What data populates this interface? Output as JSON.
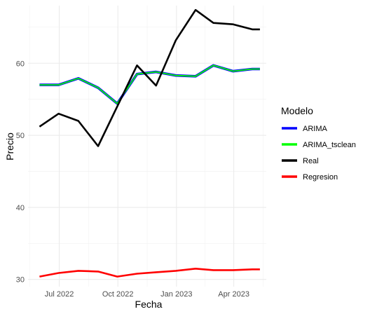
{
  "chart_data": {
    "type": "line",
    "xlabel": "Fecha",
    "ylabel": "Precio",
    "ylim": [
      29,
      68
    ],
    "xlim": [
      "2022-05-13",
      "2023-05-22"
    ],
    "grid": true,
    "legend_placement": "right",
    "legend_title": "Modelo",
    "y_ticks": [
      30,
      40,
      50,
      60
    ],
    "x_ticks": [
      {
        "date": "2022-07-01",
        "label": "Jul 2022"
      },
      {
        "date": "2022-10-01",
        "label": "Oct 2022"
      },
      {
        "date": "2023-01-01",
        "label": "Jan 2023"
      },
      {
        "date": "2023-04-01",
        "label": "Apr 2023"
      }
    ],
    "x": [
      "2022-05-31",
      "2022-06-30",
      "2022-07-31",
      "2022-08-31",
      "2022-09-30",
      "2022-10-31",
      "2022-11-30",
      "2022-12-31",
      "2023-01-31",
      "2023-02-28",
      "2023-03-31",
      "2023-04-30",
      "2023-05-12"
    ],
    "series": [
      {
        "name": "ARIMA",
        "color": "#0000ff",
        "values": [
          57.0,
          57.0,
          57.9,
          56.6,
          54.4,
          58.5,
          58.8,
          58.3,
          58.2,
          59.7,
          58.9,
          59.2,
          59.2
        ]
      },
      {
        "name": "ARIMA_tsclean",
        "color": "#00ff00",
        "values": [
          57.0,
          57.0,
          57.9,
          56.6,
          54.4,
          58.5,
          58.8,
          58.3,
          58.2,
          59.7,
          58.9,
          59.2,
          59.2
        ]
      },
      {
        "name": "Real",
        "color": "#000000",
        "values": [
          51.2,
          53.0,
          52.0,
          48.5,
          54.0,
          59.7,
          56.9,
          63.2,
          67.4,
          65.6,
          65.4,
          64.7,
          64.7
        ]
      },
      {
        "name": "Regresion",
        "color": "#ff0000",
        "values": [
          30.4,
          30.9,
          31.2,
          31.1,
          30.4,
          30.8,
          31.0,
          31.2,
          31.5,
          31.3,
          31.3,
          31.4,
          31.4
        ]
      }
    ]
  }
}
